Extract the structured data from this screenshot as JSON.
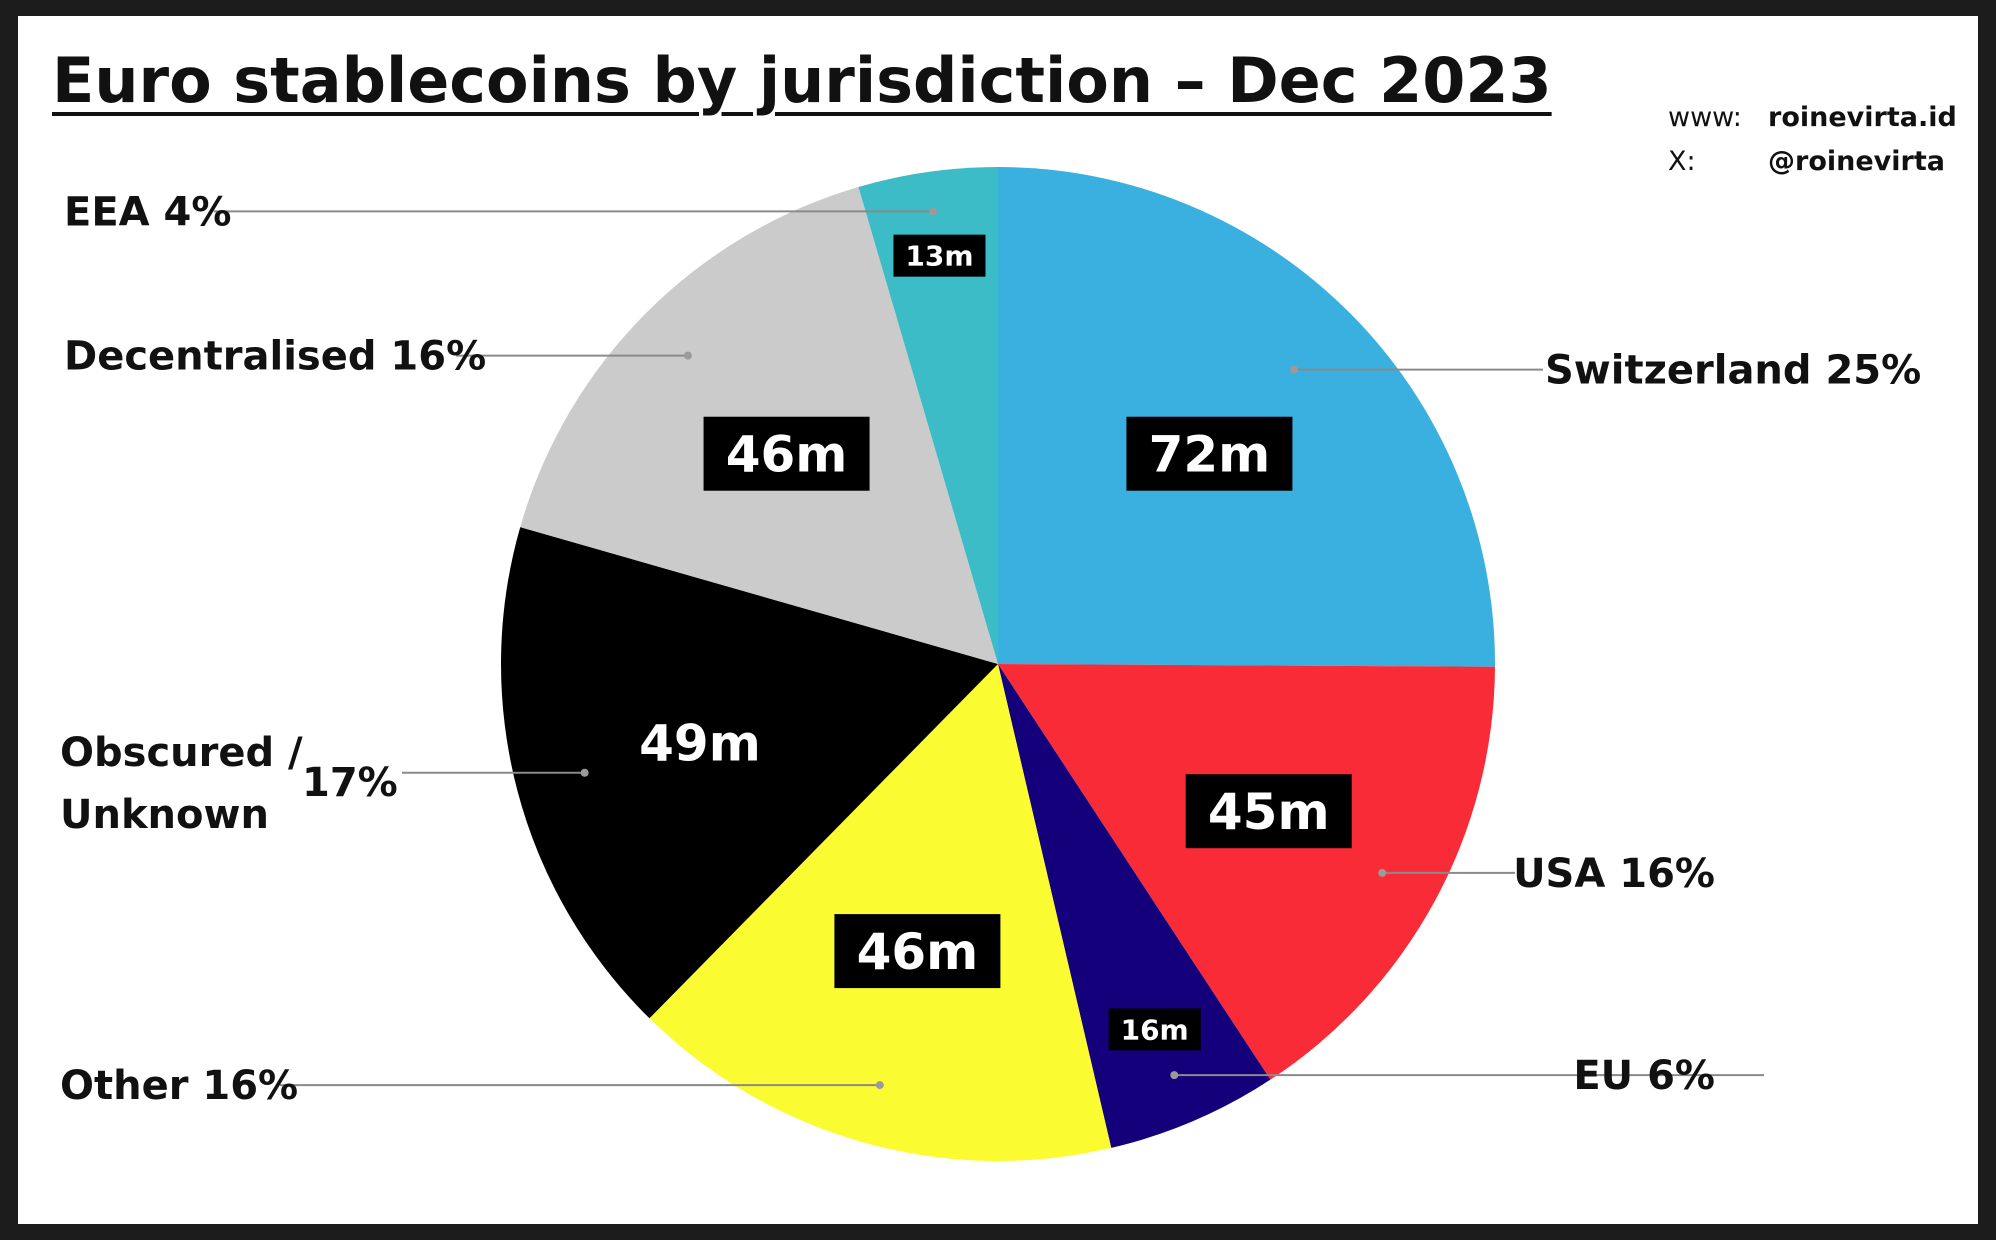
{
  "chart_data": {
    "type": "pie",
    "title": "Euro stablecoins by jurisdiction – Dec 2023",
    "slices": [
      {
        "label": "Switzerland",
        "percent_label": "25%",
        "value_label": "72m",
        "value": 72,
        "color": "#3ab0e0"
      },
      {
        "label": "USA",
        "percent_label": "16%",
        "value_label": "45m",
        "value": 45,
        "color": "#f92b36"
      },
      {
        "label": "EU",
        "percent_label": "6%",
        "value_label": "16m",
        "value": 16,
        "color": "#14007a"
      },
      {
        "label": "Other",
        "percent_label": "16%",
        "value_label": "46m",
        "value": 46,
        "color": "#fbfb32"
      },
      {
        "label": "Obscured / Unknown",
        "percent_label": "17%",
        "value_label": "49m",
        "value": 49,
        "color": "#000000"
      },
      {
        "label": "Decentralised",
        "percent_label": "16%",
        "value_label": "46m",
        "value": 46,
        "color": "#cbcbcb"
      },
      {
        "label": "EEA",
        "percent_label": "4%",
        "value_label": "13m",
        "value": 13,
        "color": "#3bbcc6"
      }
    ]
  },
  "credits": [
    {
      "key": "www:",
      "value": "roinevirta.id"
    },
    {
      "key": "X:",
      "value": "@roinevirta"
    }
  ]
}
